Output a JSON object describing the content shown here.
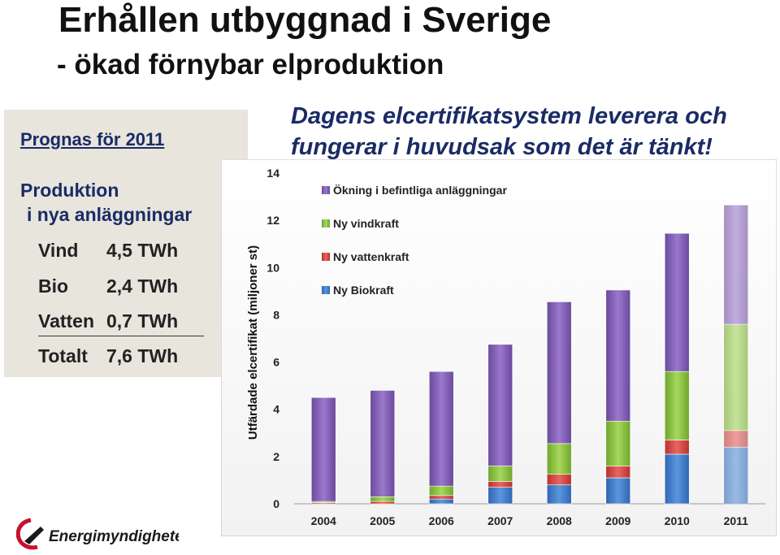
{
  "slide": {
    "title": "Erhållen utbyggnad i Sverige",
    "subtitle": "- ökad förnybar elproduktion",
    "quote_line1": "Dagens elcertifikatsystem leverera och",
    "quote_line2": "fungerar i huvudsak som det är tänkt!",
    "logo_text": "Energimyndigheten"
  },
  "panel": {
    "prognos": "Prognas för 2011",
    "produktion_line1": "Produktion",
    "produktion_line2": "i nya anläggningar",
    "rows": [
      {
        "name": "Vind",
        "value": "4,5 TWh"
      },
      {
        "name": "Bio",
        "value": "2,4 TWh"
      },
      {
        "name": "Vatten",
        "value": "0,7 TWh"
      },
      {
        "name": "Totalt",
        "value": "7,6 TWh"
      }
    ]
  },
  "chart_data": {
    "type": "bar",
    "stacked": true,
    "categories": [
      "2004",
      "2005",
      "2006",
      "2007",
      "2008",
      "2009",
      "2010",
      "2011"
    ],
    "ylabel": "Utfärdade elcertifikat (miljoner st)",
    "xlabel": "",
    "ylim": [
      0,
      14
    ],
    "yticks": [
      0,
      2,
      4,
      6,
      8,
      10,
      12,
      14
    ],
    "legend_position": "top-left",
    "series": [
      {
        "name": "Ny Biokraft",
        "color": "#3d7cc9",
        "values": [
          0.0,
          0.0,
          0.2,
          0.7,
          0.8,
          1.1,
          2.1,
          2.4
        ]
      },
      {
        "name": "Ny vattenkraft",
        "color": "#d9433e",
        "values": [
          0.05,
          0.1,
          0.15,
          0.25,
          0.45,
          0.5,
          0.6,
          0.7
        ]
      },
      {
        "name": "Ny vindkraft",
        "color": "#8cc43c",
        "values": [
          0.05,
          0.2,
          0.4,
          0.65,
          1.3,
          1.9,
          2.9,
          4.5
        ]
      },
      {
        "name": "Ökning i befintliga anläggningar",
        "color": "#8560b8",
        "values": [
          4.4,
          4.5,
          4.85,
          5.15,
          6.0,
          5.55,
          5.85,
          5.05
        ]
      }
    ],
    "faded_categories": [
      "2011"
    ]
  }
}
